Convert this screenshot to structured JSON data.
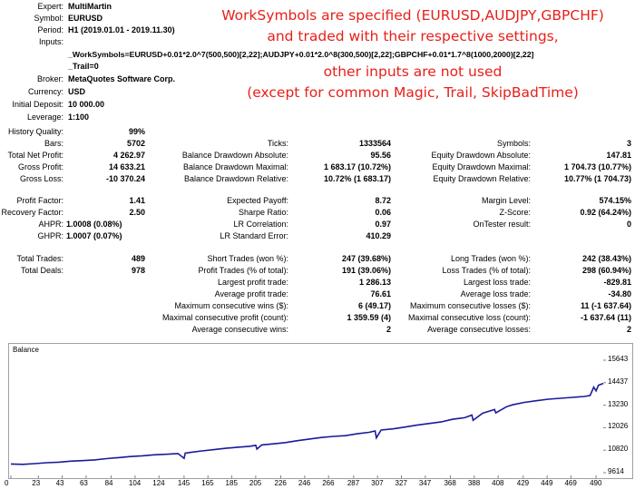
{
  "header": {
    "expert_label": "Expert:",
    "expert": "MultiMartin",
    "symbol_label": "Symbol:",
    "symbol": "EURUSD",
    "period_label": "Period:",
    "period": "H1 (2019.01.01 - 2019.11.30)",
    "inputs_label": "Inputs:",
    "input_line1": "_WorkSymbols=EURUSD+0.01*2.0^7(500,500)[2,22];AUDJPY+0.01*2.0^8(300,500)[2,22];GBPCHF+0.01*1.7^8(1000,2000)[2,22]",
    "input_line2": "_Trail=0",
    "broker_label": "Broker:",
    "broker": "MetaQuotes Software Corp.",
    "currency_label": "Currency:",
    "currency": "USD",
    "deposit_label": "Initial Deposit:",
    "deposit": "10 000.00",
    "leverage_label": "Leverage:",
    "leverage": "1:100"
  },
  "annotation": {
    "line1": "WorkSymbols are specified (EURUSD,AUDJPY,GBPCHF)",
    "line2": "and traded with their respective settings,",
    "line3": "other inputs are not used",
    "line4": "(except for common Magic, Trail, SkipBadTime)",
    "color": "#e8201a"
  },
  "results": {
    "history_quality_label": "History Quality:",
    "history_quality": "99%",
    "bars_label": "Bars:",
    "bars": "5702",
    "ticks_label": "Ticks:",
    "ticks": "1333564",
    "symbols_label": "Symbols:",
    "symbols": "3",
    "net_profit_label": "Total Net Profit:",
    "net_profit": "4 262.97",
    "bal_dd_abs_label": "Balance Drawdown Absolute:",
    "bal_dd_abs": "95.56",
    "eq_dd_abs_label": "Equity Drawdown Absolute:",
    "eq_dd_abs": "147.81",
    "gross_profit_label": "Gross Profit:",
    "gross_profit": "14 633.21",
    "bal_dd_max_label": "Balance Drawdown Maximal:",
    "bal_dd_max": "1 683.17 (10.72%)",
    "eq_dd_max_label": "Equity Drawdown Maximal:",
    "eq_dd_max": "1 704.73 (10.77%)",
    "gross_loss_label": "Gross Loss:",
    "gross_loss": "-10 370.24",
    "bal_dd_rel_label": "Balance Drawdown Relative:",
    "bal_dd_rel": "10.72% (1 683.17)",
    "eq_dd_rel_label": "Equity Drawdown Relative:",
    "eq_dd_rel": "10.77% (1 704.73)",
    "profit_factor_label": "Profit Factor:",
    "profit_factor": "1.41",
    "expected_payoff_label": "Expected Payoff:",
    "expected_payoff": "8.72",
    "margin_level_label": "Margin Level:",
    "margin_level": "574.15%",
    "recovery_factor_label": "Recovery Factor:",
    "recovery_factor": "2.50",
    "sharpe_label": "Sharpe Ratio:",
    "sharpe": "0.06",
    "zscore_label": "Z-Score:",
    "zscore": "0.92 (64.24%)",
    "ahpr_label": "AHPR:",
    "ahpr": "1.0008 (0.08%)",
    "lr_corr_label": "LR Correlation:",
    "lr_corr": "0.97",
    "ontester_label": "OnTester result:",
    "ontester": "0",
    "ghpr_label": "GHPR:",
    "ghpr": "1.0007 (0.07%)",
    "lr_err_label": "LR Standard Error:",
    "lr_err": "410.29",
    "total_trades_label": "Total Trades:",
    "total_trades": "489",
    "short_label": "Short Trades (won %):",
    "short": "247 (39.68%)",
    "long_label": "Long Trades (won %):",
    "long": "242 (38.43%)",
    "total_deals_label": "Total Deals:",
    "total_deals": "978",
    "profit_trades_label": "Profit Trades (% of total):",
    "profit_trades": "191 (39.06%)",
    "loss_trades_label": "Loss Trades (% of total):",
    "loss_trades": "298 (60.94%)",
    "largest_profit_label": "Largest profit trade:",
    "largest_profit": "1 286.13",
    "largest_loss_label": "Largest loss trade:",
    "largest_loss": "-829.81",
    "avg_profit_label": "Average profit trade:",
    "avg_profit": "76.61",
    "avg_loss_label": "Average loss trade:",
    "avg_loss": "-34.80",
    "max_cons_wins_label": "Maximum consecutive wins ($):",
    "max_cons_wins": "6 (49.17)",
    "max_cons_losses_label": "Maximum consecutive losses ($):",
    "max_cons_losses": "11 (-1 637.64)",
    "max_cons_profit_label": "Maximal consecutive profit (count):",
    "max_cons_profit": "1 359.59 (4)",
    "max_cons_loss_label": "Maximal consecutive loss (count):",
    "max_cons_loss": "-1 637.64 (11)",
    "avg_cons_wins_label": "Average consecutive wins:",
    "avg_cons_wins": "2",
    "avg_cons_losses_label": "Average consecutive losses:",
    "avg_cons_losses": "2"
  },
  "chart_data": {
    "type": "line",
    "title": "Balance",
    "xlabel": "",
    "ylabel": "",
    "x_ticks": [
      "0",
      "23",
      "43",
      "63",
      "84",
      "104",
      "124",
      "145",
      "165",
      "185",
      "205",
      "226",
      "246",
      "266",
      "287",
      "307",
      "327",
      "347",
      "368",
      "388",
      "408",
      "429",
      "449",
      "469",
      "490"
    ],
    "y_ticks": [
      "15643",
      "14437",
      "13230",
      "12026",
      "10820",
      "9614"
    ],
    "xlim": [
      0,
      496
    ],
    "ylim": [
      9614,
      15643
    ],
    "grid": false,
    "line_color": "#1a1a9c",
    "series": [
      {
        "x": [
          0,
          10,
          20,
          30,
          40,
          50,
          60,
          70,
          80,
          90,
          100,
          110,
          120,
          130,
          140,
          145,
          146,
          150,
          160,
          170,
          180,
          190,
          200,
          205,
          206,
          210,
          220,
          230,
          240,
          250,
          260,
          270,
          280,
          290,
          300,
          305,
          306,
          310,
          320,
          330,
          340,
          350,
          360,
          370,
          380,
          386,
          387,
          395,
          400,
          405,
          406,
          415,
          420,
          430,
          440,
          450,
          460,
          470,
          480,
          485,
          488,
          490,
          492,
          496
        ],
        "y": [
          10080,
          10060,
          10100,
          10150,
          10180,
          10230,
          10260,
          10300,
          10370,
          10420,
          10480,
          10520,
          10570,
          10600,
          10640,
          10380,
          10660,
          10700,
          10780,
          10850,
          10920,
          10980,
          11030,
          11080,
          10880,
          11100,
          11160,
          11230,
          11330,
          11420,
          11500,
          11560,
          11600,
          11700,
          11780,
          11850,
          11480,
          11900,
          11960,
          12060,
          12160,
          12250,
          12330,
          12480,
          12560,
          12700,
          12420,
          12800,
          12900,
          13000,
          12820,
          13150,
          13250,
          13380,
          13470,
          13550,
          13600,
          13650,
          13700,
          13750,
          14200,
          14000,
          14300,
          14400
        ]
      }
    ]
  }
}
